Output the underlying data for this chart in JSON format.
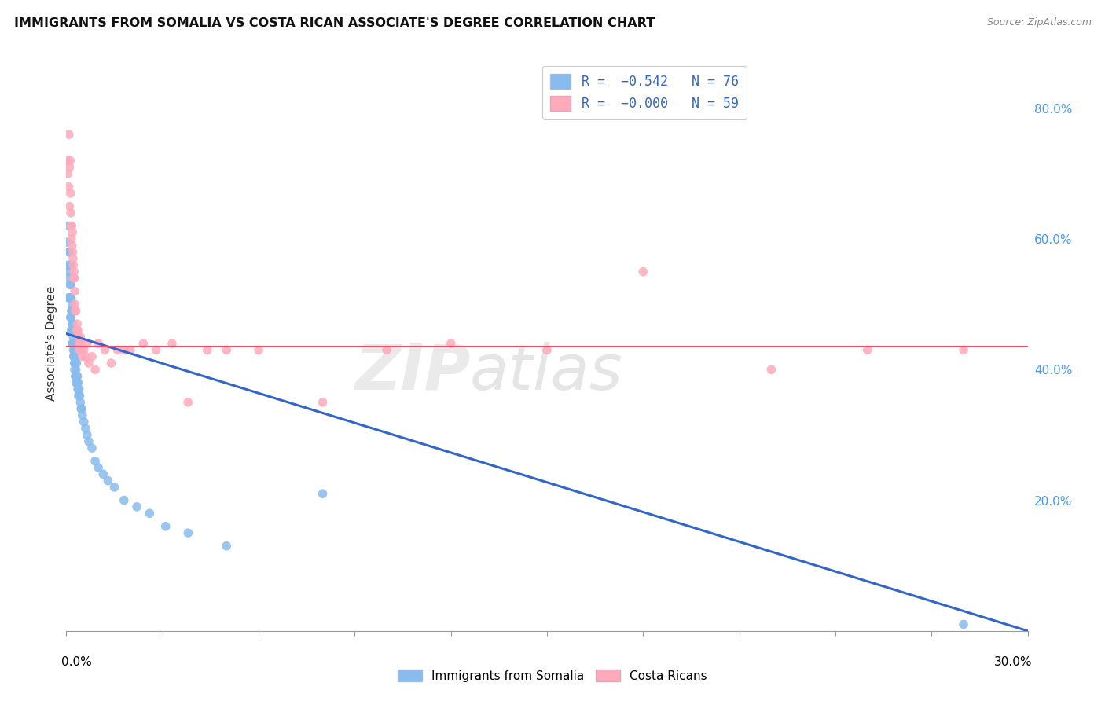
{
  "title": "IMMIGRANTS FROM SOMALIA VS COSTA RICAN ASSOCIATE'S DEGREE CORRELATION CHART",
  "source": "Source: ZipAtlas.com",
  "ylabel": "Associate's Degree",
  "right_yticks": [
    "20.0%",
    "40.0%",
    "60.0%",
    "80.0%"
  ],
  "right_ytick_vals": [
    0.2,
    0.4,
    0.6,
    0.8
  ],
  "blue_color": "#88BBEE",
  "pink_color": "#FFAABB",
  "line_blue": "#3366CC",
  "line_pink": "#FF4466",
  "watermark_1": "ZIP",
  "watermark_2": "atlas",
  "xlim": [
    0.0,
    0.3
  ],
  "ylim": [
    0.0,
    0.88
  ],
  "blue_trend_x": [
    0.0,
    0.3
  ],
  "blue_trend_y": [
    0.455,
    0.0
  ],
  "pink_trend_y": 0.435,
  "background_color": "#FFFFFF",
  "somalia_points_x": [
    0.0003,
    0.0005,
    0.0005,
    0.0007,
    0.0008,
    0.0008,
    0.001,
    0.001,
    0.001,
    0.0012,
    0.0012,
    0.0013,
    0.0013,
    0.0014,
    0.0014,
    0.0015,
    0.0015,
    0.0016,
    0.0016,
    0.0017,
    0.0017,
    0.0018,
    0.0018,
    0.0019,
    0.0019,
    0.002,
    0.002,
    0.0021,
    0.0021,
    0.0022,
    0.0022,
    0.0023,
    0.0023,
    0.0024,
    0.0024,
    0.0025,
    0.0025,
    0.0026,
    0.0026,
    0.0027,
    0.0027,
    0.0028,
    0.0028,
    0.003,
    0.003,
    0.0032,
    0.0032,
    0.0034,
    0.0035,
    0.0036,
    0.0037,
    0.0038,
    0.004,
    0.0042,
    0.0044,
    0.0046,
    0.0048,
    0.005,
    0.0055,
    0.006,
    0.0065,
    0.007,
    0.008,
    0.009,
    0.01,
    0.0115,
    0.013,
    0.015,
    0.018,
    0.022,
    0.026,
    0.031,
    0.038,
    0.05,
    0.08,
    0.28
  ],
  "somalia_points_y": [
    0.595,
    0.62,
    0.56,
    0.51,
    0.58,
    0.54,
    0.58,
    0.55,
    0.51,
    0.56,
    0.53,
    0.51,
    0.48,
    0.56,
    0.53,
    0.51,
    0.48,
    0.49,
    0.46,
    0.49,
    0.46,
    0.5,
    0.47,
    0.46,
    0.44,
    0.47,
    0.44,
    0.46,
    0.44,
    0.45,
    0.43,
    0.44,
    0.42,
    0.44,
    0.42,
    0.43,
    0.41,
    0.42,
    0.4,
    0.43,
    0.41,
    0.41,
    0.39,
    0.4,
    0.38,
    0.41,
    0.39,
    0.38,
    0.39,
    0.37,
    0.38,
    0.36,
    0.37,
    0.36,
    0.35,
    0.34,
    0.34,
    0.33,
    0.32,
    0.31,
    0.3,
    0.29,
    0.28,
    0.26,
    0.25,
    0.24,
    0.23,
    0.22,
    0.2,
    0.19,
    0.18,
    0.16,
    0.15,
    0.13,
    0.21,
    0.01
  ],
  "costarica_points_x": [
    0.0003,
    0.0005,
    0.0007,
    0.0008,
    0.001,
    0.001,
    0.0012,
    0.0013,
    0.0014,
    0.0015,
    0.0016,
    0.0017,
    0.0018,
    0.0019,
    0.002,
    0.0021,
    0.0022,
    0.0023,
    0.0024,
    0.0025,
    0.0026,
    0.0027,
    0.0028,
    0.003,
    0.0032,
    0.0034,
    0.0036,
    0.0038,
    0.004,
    0.0042,
    0.0044,
    0.0046,
    0.0048,
    0.005,
    0.0055,
    0.006,
    0.0065,
    0.007,
    0.008,
    0.009,
    0.01,
    0.012,
    0.014,
    0.016,
    0.018,
    0.02,
    0.024,
    0.028,
    0.033,
    0.038,
    0.044,
    0.05,
    0.06,
    0.08,
    0.1,
    0.12,
    0.15,
    0.18,
    0.22,
    0.25,
    0.28
  ],
  "costarica_points_y": [
    0.72,
    0.7,
    0.68,
    0.76,
    0.71,
    0.65,
    0.72,
    0.67,
    0.64,
    0.62,
    0.6,
    0.62,
    0.59,
    0.61,
    0.58,
    0.57,
    0.56,
    0.54,
    0.55,
    0.54,
    0.52,
    0.5,
    0.49,
    0.49,
    0.46,
    0.47,
    0.46,
    0.45,
    0.44,
    0.43,
    0.45,
    0.44,
    0.43,
    0.42,
    0.43,
    0.42,
    0.44,
    0.41,
    0.42,
    0.4,
    0.44,
    0.43,
    0.41,
    0.43,
    0.43,
    0.43,
    0.44,
    0.43,
    0.44,
    0.35,
    0.43,
    0.43,
    0.43,
    0.35,
    0.43,
    0.44,
    0.43,
    0.55,
    0.4,
    0.43,
    0.43
  ]
}
